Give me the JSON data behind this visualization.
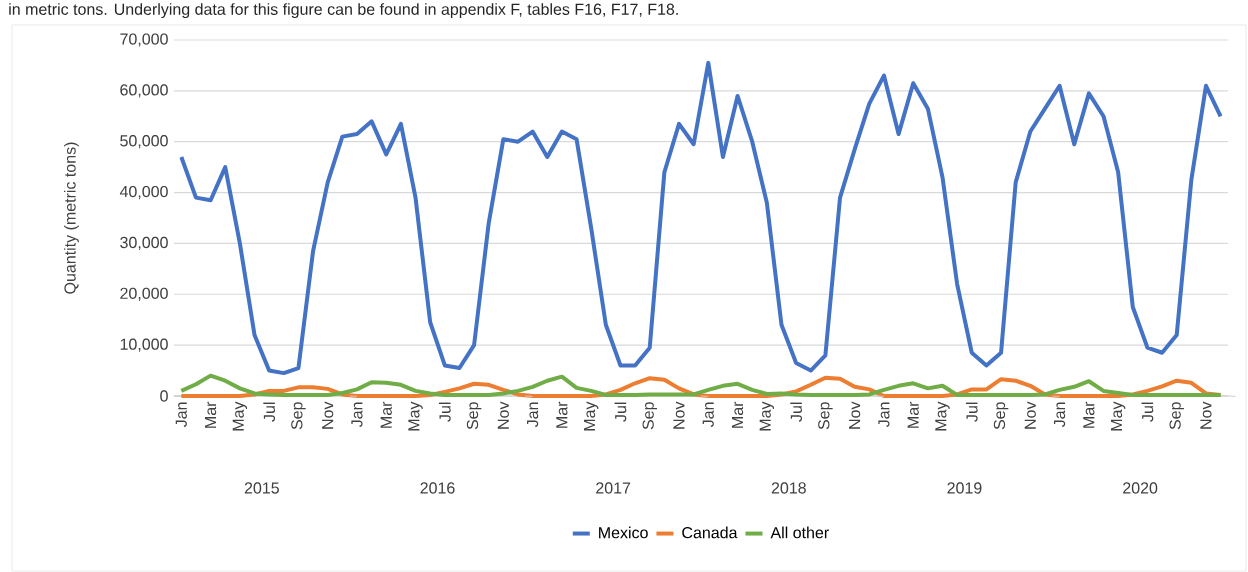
{
  "chart_data": {
    "type": "line",
    "ylabel": "Quantity (metric tons)",
    "annotations": [
      "in metric tons. Underlying data for this figure can be found in appendix F, tables F16, F17, F18.",
      "2015",
      "2016",
      "2017",
      "2018",
      "2019",
      "2020"
    ],
    "categories": [
      "Jan",
      null,
      "Mar",
      null,
      "May",
      null,
      "Jul",
      null,
      "Sep",
      null,
      "Nov",
      null,
      "Jan",
      null,
      "Mar",
      null,
      "May",
      null,
      "Jul",
      null,
      "Sep",
      null,
      "Nov",
      null,
      "Jan",
      null,
      "Mar",
      null,
      "May",
      null,
      "Jul",
      null,
      "Sep",
      null,
      "Nov",
      null,
      "Jan",
      null,
      "Mar",
      null,
      "May",
      null,
      "Jul",
      null,
      "Sep",
      null,
      "Nov",
      null,
      "Jan",
      null,
      "Mar",
      null,
      "May",
      null,
      "Jul",
      null,
      "Sep",
      null,
      "Nov",
      null,
      "Jan",
      null,
      "Mar",
      null,
      "May",
      null,
      "Jul",
      null,
      "Sep",
      null,
      "Nov",
      null
    ],
    "series": [
      {
        "name": "Mexico",
        "color": "#4472c4",
        "values": [
          47000,
          39000,
          38500,
          45000,
          30000,
          12000,
          5000,
          4500,
          5500,
          28500,
          42000,
          51000,
          51500,
          54000,
          47500,
          53500,
          39000,
          14500,
          6000,
          5500,
          10000,
          34000,
          50500,
          50000,
          52000,
          47000,
          52000,
          50500,
          33000,
          14000,
          6000,
          6000,
          9500,
          44000,
          53500,
          49500,
          65500,
          47000,
          59000,
          50000,
          38000,
          14000,
          6500,
          5000,
          8000,
          39000,
          48500,
          57500,
          63000,
          51500,
          61500,
          56500,
          43000,
          22000,
          8500,
          6000,
          8500,
          42000,
          52000,
          56500,
          61000,
          49500,
          59500,
          55000,
          44000,
          17500,
          9500,
          8500,
          12000,
          42500,
          61000,
          55000
        ]
      },
      {
        "name": "Canada",
        "color": "#ed7d31",
        "values": [
          0,
          0,
          0,
          0,
          0,
          300,
          1000,
          1000,
          1700,
          1700,
          1400,
          300,
          0,
          0,
          0,
          0,
          0,
          200,
          800,
          1500,
          2400,
          2200,
          1200,
          300,
          0,
          0,
          0,
          0,
          0,
          300,
          1200,
          2500,
          3500,
          3200,
          1500,
          300,
          0,
          0,
          0,
          0,
          0,
          300,
          900,
          2200,
          3600,
          3400,
          1800,
          1300,
          0,
          0,
          0,
          0,
          0,
          300,
          1300,
          1300,
          3300,
          3000,
          2000,
          300,
          0,
          0,
          0,
          0,
          0,
          300,
          1000,
          1900,
          3000,
          2600,
          500,
          200
        ]
      },
      {
        "name": "All other",
        "color": "#70ad47",
        "values": [
          1000,
          2300,
          4000,
          3000,
          1500,
          500,
          300,
          200,
          200,
          200,
          200,
          600,
          1300,
          2700,
          2600,
          2200,
          1000,
          500,
          200,
          200,
          200,
          200,
          500,
          1000,
          1800,
          3000,
          3800,
          1600,
          1000,
          200,
          200,
          200,
          300,
          300,
          300,
          300,
          1200,
          2000,
          2400,
          1200,
          400,
          500,
          300,
          200,
          200,
          200,
          200,
          300,
          1200,
          2000,
          2500,
          1500,
          2000,
          200,
          200,
          200,
          200,
          200,
          200,
          300,
          1200,
          1800,
          2900,
          1000,
          600,
          200,
          200,
          200,
          200,
          200,
          200,
          200
        ]
      }
    ],
    "ylim": [
      0,
      70000
    ],
    "yticks": [
      {
        "value": 0,
        "label": "0"
      },
      {
        "value": 10000,
        "label": "10,000"
      },
      {
        "value": 20000,
        "label": "20,000"
      },
      {
        "value": 30000,
        "label": "30,000"
      },
      {
        "value": 40000,
        "label": "40,000"
      },
      {
        "value": 50000,
        "label": "50,000"
      },
      {
        "value": 60000,
        "label": "60,000"
      },
      {
        "value": 70000,
        "label": "70,000"
      }
    ],
    "grid": "y",
    "legend": "bottom",
    "marker": "none",
    "line_style": "solid"
  }
}
